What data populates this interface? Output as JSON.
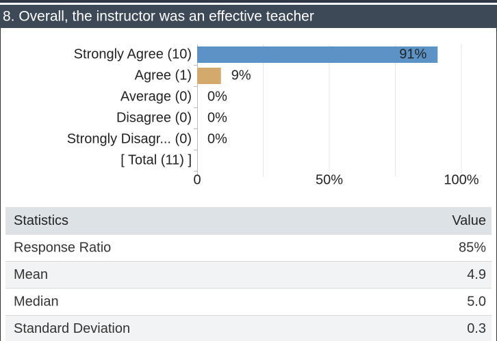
{
  "header": {
    "title": "8. Overall, the instructor was an effective teacher"
  },
  "chart_data": {
    "type": "hbar",
    "categories": [
      "Strongly Agree (10)",
      "Agree (1)",
      "Average (0)",
      "Disagree (0)",
      "Strongly Disagr... (0)",
      "[ Total (11) ]"
    ],
    "values": [
      91,
      9,
      0,
      0,
      0,
      null
    ],
    "value_labels": [
      "91%",
      "9%",
      "0%",
      "0%",
      "0%",
      null
    ],
    "colors": [
      "#5b93c6",
      "#d4aa6c",
      "#5b93c6",
      "#5b93c6",
      "#5b93c6",
      "#5b93c6"
    ],
    "xlim": [
      0,
      100
    ],
    "xticks": [
      0,
      {
        "value": 50,
        "label": "50%"
      },
      {
        "value": 100,
        "label": "100%"
      }
    ],
    "minor_xticks": [
      25,
      75
    ],
    "grid": true
  },
  "table": {
    "header": [
      "Statistics",
      "Value"
    ],
    "rows": [
      [
        "Response Ratio",
        "85%"
      ],
      [
        "Mean",
        "4.9"
      ],
      [
        "Median",
        "5.0"
      ],
      [
        "Standard Deviation",
        "0.3"
      ]
    ]
  }
}
